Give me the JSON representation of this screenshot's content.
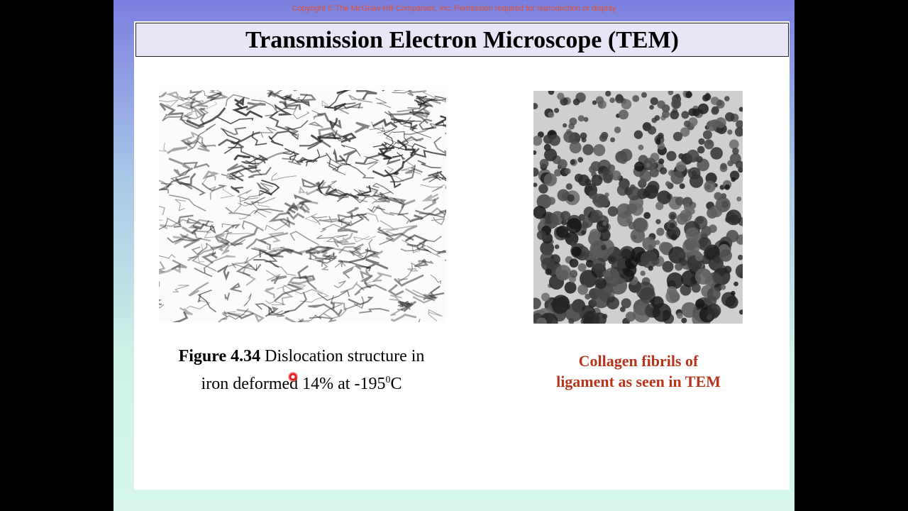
{
  "header": {
    "copyright": "Copyright © The McGraw-Hill Companies, Inc. Permission required for reproduction or display",
    "title": "Transmission Electron Microscope (TEM)"
  },
  "figures": [
    {
      "caption": {
        "label": "Figure 4.34",
        "line1": " Dislocation structure in",
        "line2": "iron deformed 14% at -195",
        "superscript": "0",
        "unit": "C"
      }
    },
    {
      "caption": {
        "lines": [
          "Collagen fibrils of",
          "ligament as seen in TEM"
        ]
      }
    }
  ]
}
